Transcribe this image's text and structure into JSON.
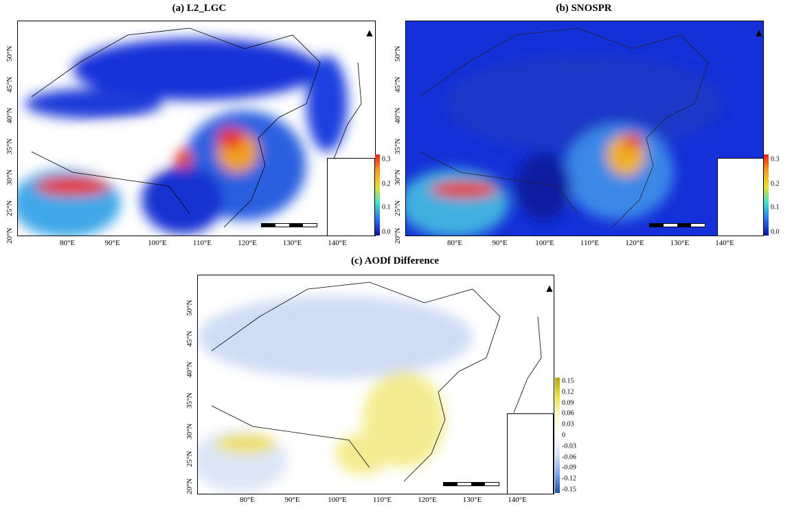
{
  "panels": [
    {
      "title": "(a) L2_LGC",
      "colorbar": [
        "0.3",
        "0.2",
        "0.1",
        "0.0"
      ],
      "colors": {
        "low": "#0a1fc8",
        "high": "#e8201a"
      }
    },
    {
      "title": "(b) SNOSPR",
      "colorbar": [
        "0.3",
        "0.2",
        "0.1",
        "0.0"
      ],
      "colors": {
        "low": "#0a1fc8",
        "high": "#e8201a"
      }
    },
    {
      "title": "(c) AODf Difference",
      "colorbar": [
        "0.15",
        "0.12",
        "0.09",
        "0.06",
        "0.03",
        "0",
        "-0.03",
        "-0.06",
        "-0.09",
        "-0.12",
        "-0.15"
      ],
      "colors": {
        "low": "#1f5fb4",
        "high": "#c8b800"
      }
    }
  ],
  "x_ticks": [
    "80°E",
    "90°E",
    "100°E",
    "110°E",
    "120°E",
    "130°E",
    "140°E"
  ],
  "y_ticks": [
    "50°N",
    "45°N",
    "40°N",
    "35°N",
    "30°N",
    "25°N",
    "20°N"
  ],
  "north_label": "N"
}
